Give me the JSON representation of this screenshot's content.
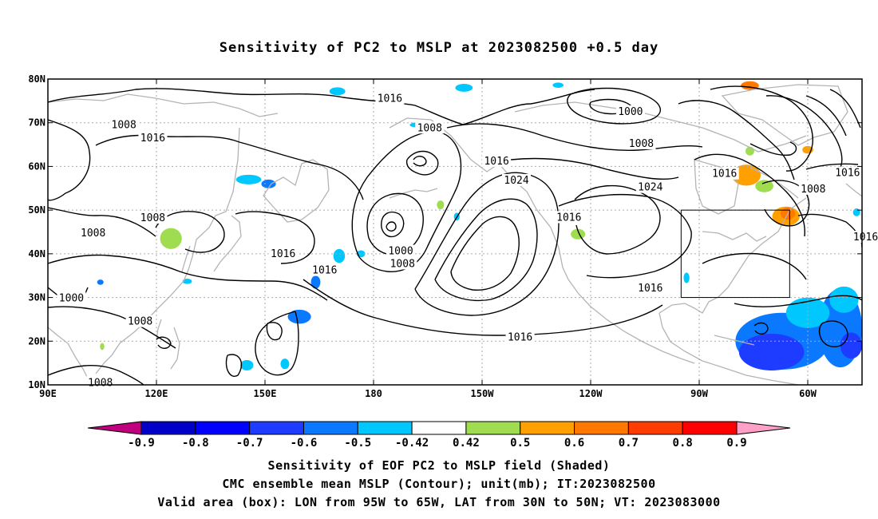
{
  "title": "Sensitivity of PC2 to MSLP at 2023082500 +0.5 day",
  "captions": {
    "line1": "Sensitivity of EOF PC2 to MSLP field (Shaded)",
    "line2": "CMC ensemble mean MSLP (Contour); unit(mb); IT:2023082500",
    "line3": "Valid area (box): LON from 95W to 65W, LAT from 30N to 50N; VT: 2023083000"
  },
  "axes": {
    "lon_range": [
      90,
      315
    ],
    "lat_range": [
      10,
      80
    ],
    "x_ticks": [
      {
        "lon": 90,
        "label": "90E"
      },
      {
        "lon": 120,
        "label": "120E"
      },
      {
        "lon": 150,
        "label": "150E"
      },
      {
        "lon": 180,
        "label": "180"
      },
      {
        "lon": 210,
        "label": "150W"
      },
      {
        "lon": 240,
        "label": "120W"
      },
      {
        "lon": 270,
        "label": "90W"
      },
      {
        "lon": 300,
        "label": "60W"
      }
    ],
    "y_ticks": [
      {
        "lat": 10,
        "label": "10N"
      },
      {
        "lat": 20,
        "label": "20N"
      },
      {
        "lat": 30,
        "label": "30N"
      },
      {
        "lat": 40,
        "label": "40N"
      },
      {
        "lat": 50,
        "label": "50N"
      },
      {
        "lat": 60,
        "label": "60N"
      },
      {
        "lat": 70,
        "label": "70N"
      },
      {
        "lat": 80,
        "label": "80N"
      }
    ],
    "grid": "dotted"
  },
  "valid_box": {
    "lon_min": 265,
    "lon_max": 295,
    "lat_min": 30,
    "lat_max": 50
  },
  "colorbar": {
    "colors": [
      "#c0007f",
      "#0000c8",
      "#0000ff",
      "#1e3cff",
      "#0a78ff",
      "#00c8ff",
      "#ffffff",
      "#a0dc50",
      "#ffa000",
      "#ff7800",
      "#ff3c00",
      "#ff0000",
      "#ffa0c8"
    ],
    "labels": [
      "-0.9",
      "-0.8",
      "-0.7",
      "-0.6",
      "-0.5",
      "-0.42",
      "0.42",
      "0.5",
      "0.6",
      "0.7",
      "0.8",
      "0.9"
    ]
  },
  "contour_labels": [
    {
      "lon": 184.5,
      "lat": 75.5,
      "text": "1016"
    },
    {
      "lon": 111,
      "lat": 69.5,
      "text": "1008"
    },
    {
      "lon": 119,
      "lat": 66.5,
      "text": "1016"
    },
    {
      "lon": 195.5,
      "lat": 68.8,
      "text": "1008"
    },
    {
      "lon": 251,
      "lat": 72.5,
      "text": "1000"
    },
    {
      "lon": 254,
      "lat": 65.2,
      "text": "1008"
    },
    {
      "lon": 214,
      "lat": 61.2,
      "text": "1016"
    },
    {
      "lon": 219.5,
      "lat": 56.8,
      "text": "1024"
    },
    {
      "lon": 256.5,
      "lat": 55.2,
      "text": "1024"
    },
    {
      "lon": 277,
      "lat": 58.3,
      "text": "1016"
    },
    {
      "lon": 301.5,
      "lat": 54.8,
      "text": "1008"
    },
    {
      "lon": 311,
      "lat": 58.5,
      "text": "1016"
    },
    {
      "lon": 119,
      "lat": 48.2,
      "text": "1008"
    },
    {
      "lon": 102.5,
      "lat": 44.7,
      "text": "1008"
    },
    {
      "lon": 234,
      "lat": 48.3,
      "text": "1016"
    },
    {
      "lon": 316,
      "lat": 43.8,
      "text": "1016"
    },
    {
      "lon": 187.5,
      "lat": 40.6,
      "text": "1000"
    },
    {
      "lon": 188,
      "lat": 37.7,
      "text": "1008"
    },
    {
      "lon": 155,
      "lat": 40,
      "text": "1016"
    },
    {
      "lon": 166.5,
      "lat": 36.2,
      "text": "1016"
    },
    {
      "lon": 256.5,
      "lat": 32.1,
      "text": "1016"
    },
    {
      "lon": 96.5,
      "lat": 29.8,
      "text": "1000"
    },
    {
      "lon": 115.5,
      "lat": 24.5,
      "text": "1008"
    },
    {
      "lon": 220.5,
      "lat": 20.9,
      "text": "1016"
    },
    {
      "lon": 104.5,
      "lat": 10.5,
      "text": "1008"
    }
  ],
  "shaded_patches": [
    {
      "lon": 124,
      "lat": 43.5,
      "rx": 3,
      "ry": 2.4,
      "color": "#a0dc50"
    },
    {
      "lon": 145.5,
      "lat": 57,
      "rx": 3.5,
      "ry": 1.1,
      "color": "#00c8ff"
    },
    {
      "lon": 151,
      "lat": 56,
      "rx": 2,
      "ry": 1,
      "color": "#0a78ff"
    },
    {
      "lon": 170,
      "lat": 77.2,
      "rx": 2.2,
      "ry": 0.9,
      "color": "#00c8ff"
    },
    {
      "lon": 192.5,
      "lat": 69.5,
      "rx": 2.5,
      "ry": 0.6,
      "color": "#00c8ff"
    },
    {
      "lon": 205,
      "lat": 78,
      "rx": 2.4,
      "ry": 0.9,
      "color": "#00c8ff"
    },
    {
      "lon": 231,
      "lat": 78.6,
      "rx": 1.5,
      "ry": 0.6,
      "color": "#00c8ff"
    },
    {
      "lon": 170.5,
      "lat": 39.5,
      "rx": 1.6,
      "ry": 1.6,
      "color": "#00c8ff"
    },
    {
      "lon": 176.5,
      "lat": 40,
      "rx": 1.2,
      "ry": 0.8,
      "color": "#00c8ff"
    },
    {
      "lon": 164,
      "lat": 33.5,
      "rx": 1.3,
      "ry": 1.5,
      "color": "#0a78ff"
    },
    {
      "lon": 159.5,
      "lat": 25.6,
      "rx": 3.2,
      "ry": 1.6,
      "color": "#0a78ff"
    },
    {
      "lon": 145,
      "lat": 14.5,
      "rx": 1.8,
      "ry": 1.2,
      "color": "#00c8ff"
    },
    {
      "lon": 155.5,
      "lat": 14.8,
      "rx": 1.2,
      "ry": 1.2,
      "color": "#00c8ff"
    },
    {
      "lon": 198.5,
      "lat": 51.2,
      "rx": 1,
      "ry": 1,
      "color": "#a0dc50"
    },
    {
      "lon": 203,
      "lat": 48.5,
      "rx": 0.8,
      "ry": 0.9,
      "color": "#00c8ff"
    },
    {
      "lon": 212.5,
      "lat": 61,
      "rx": 0.9,
      "ry": 0.9,
      "color": "#00c8ff"
    },
    {
      "lon": 236.5,
      "lat": 44.5,
      "rx": 2,
      "ry": 1.2,
      "color": "#a0dc50"
    },
    {
      "lon": 283,
      "lat": 58,
      "rx": 4,
      "ry": 2.4,
      "color": "#ffa000"
    },
    {
      "lon": 294,
      "lat": 48.6,
      "rx": 3.8,
      "ry": 2.2,
      "color": "#ffa000"
    },
    {
      "lon": 294.5,
      "lat": 49.2,
      "rx": 2,
      "ry": 1.4,
      "color": "#ff7800"
    },
    {
      "lon": 288,
      "lat": 55.5,
      "rx": 2.5,
      "ry": 1.4,
      "color": "#a0dc50"
    },
    {
      "lon": 300,
      "lat": 63.8,
      "rx": 1.5,
      "ry": 0.9,
      "color": "#ffa000"
    },
    {
      "lon": 284,
      "lat": 78.5,
      "rx": 2.5,
      "ry": 1,
      "color": "#ff7800"
    },
    {
      "lon": 284,
      "lat": 63.5,
      "rx": 1.2,
      "ry": 1,
      "color": "#a0dc50"
    },
    {
      "lon": 293,
      "lat": 20,
      "rx": 13,
      "ry": 6.5,
      "color": "#0a78ff"
    },
    {
      "lon": 290,
      "lat": 17.5,
      "rx": 9,
      "ry": 4.2,
      "color": "#1e3cff"
    },
    {
      "lon": 309,
      "lat": 23,
      "rx": 6,
      "ry": 9,
      "color": "#0a78ff"
    },
    {
      "lon": 312,
      "lat": 19,
      "rx": 3,
      "ry": 3,
      "color": "#1e3cff"
    },
    {
      "lon": 300,
      "lat": 26.5,
      "rx": 6,
      "ry": 3.5,
      "color": "#00c8ff"
    },
    {
      "lon": 310,
      "lat": 29.5,
      "rx": 4,
      "ry": 3,
      "color": "#00c8ff"
    },
    {
      "lon": 313.5,
      "lat": 49.5,
      "rx": 1,
      "ry": 0.9,
      "color": "#00c8ff"
    },
    {
      "lon": 266.5,
      "lat": 34.5,
      "rx": 0.8,
      "ry": 1.2,
      "color": "#00c8ff"
    },
    {
      "lon": 104.5,
      "lat": 33.5,
      "rx": 0.9,
      "ry": 0.6,
      "color": "#0a78ff"
    },
    {
      "lon": 128.5,
      "lat": 33.7,
      "rx": 1.3,
      "ry": 0.6,
      "color": "#00c8ff"
    },
    {
      "lon": 105,
      "lat": 18.8,
      "rx": 0.6,
      "ry": 0.8,
      "color": "#a0dc50"
    }
  ]
}
